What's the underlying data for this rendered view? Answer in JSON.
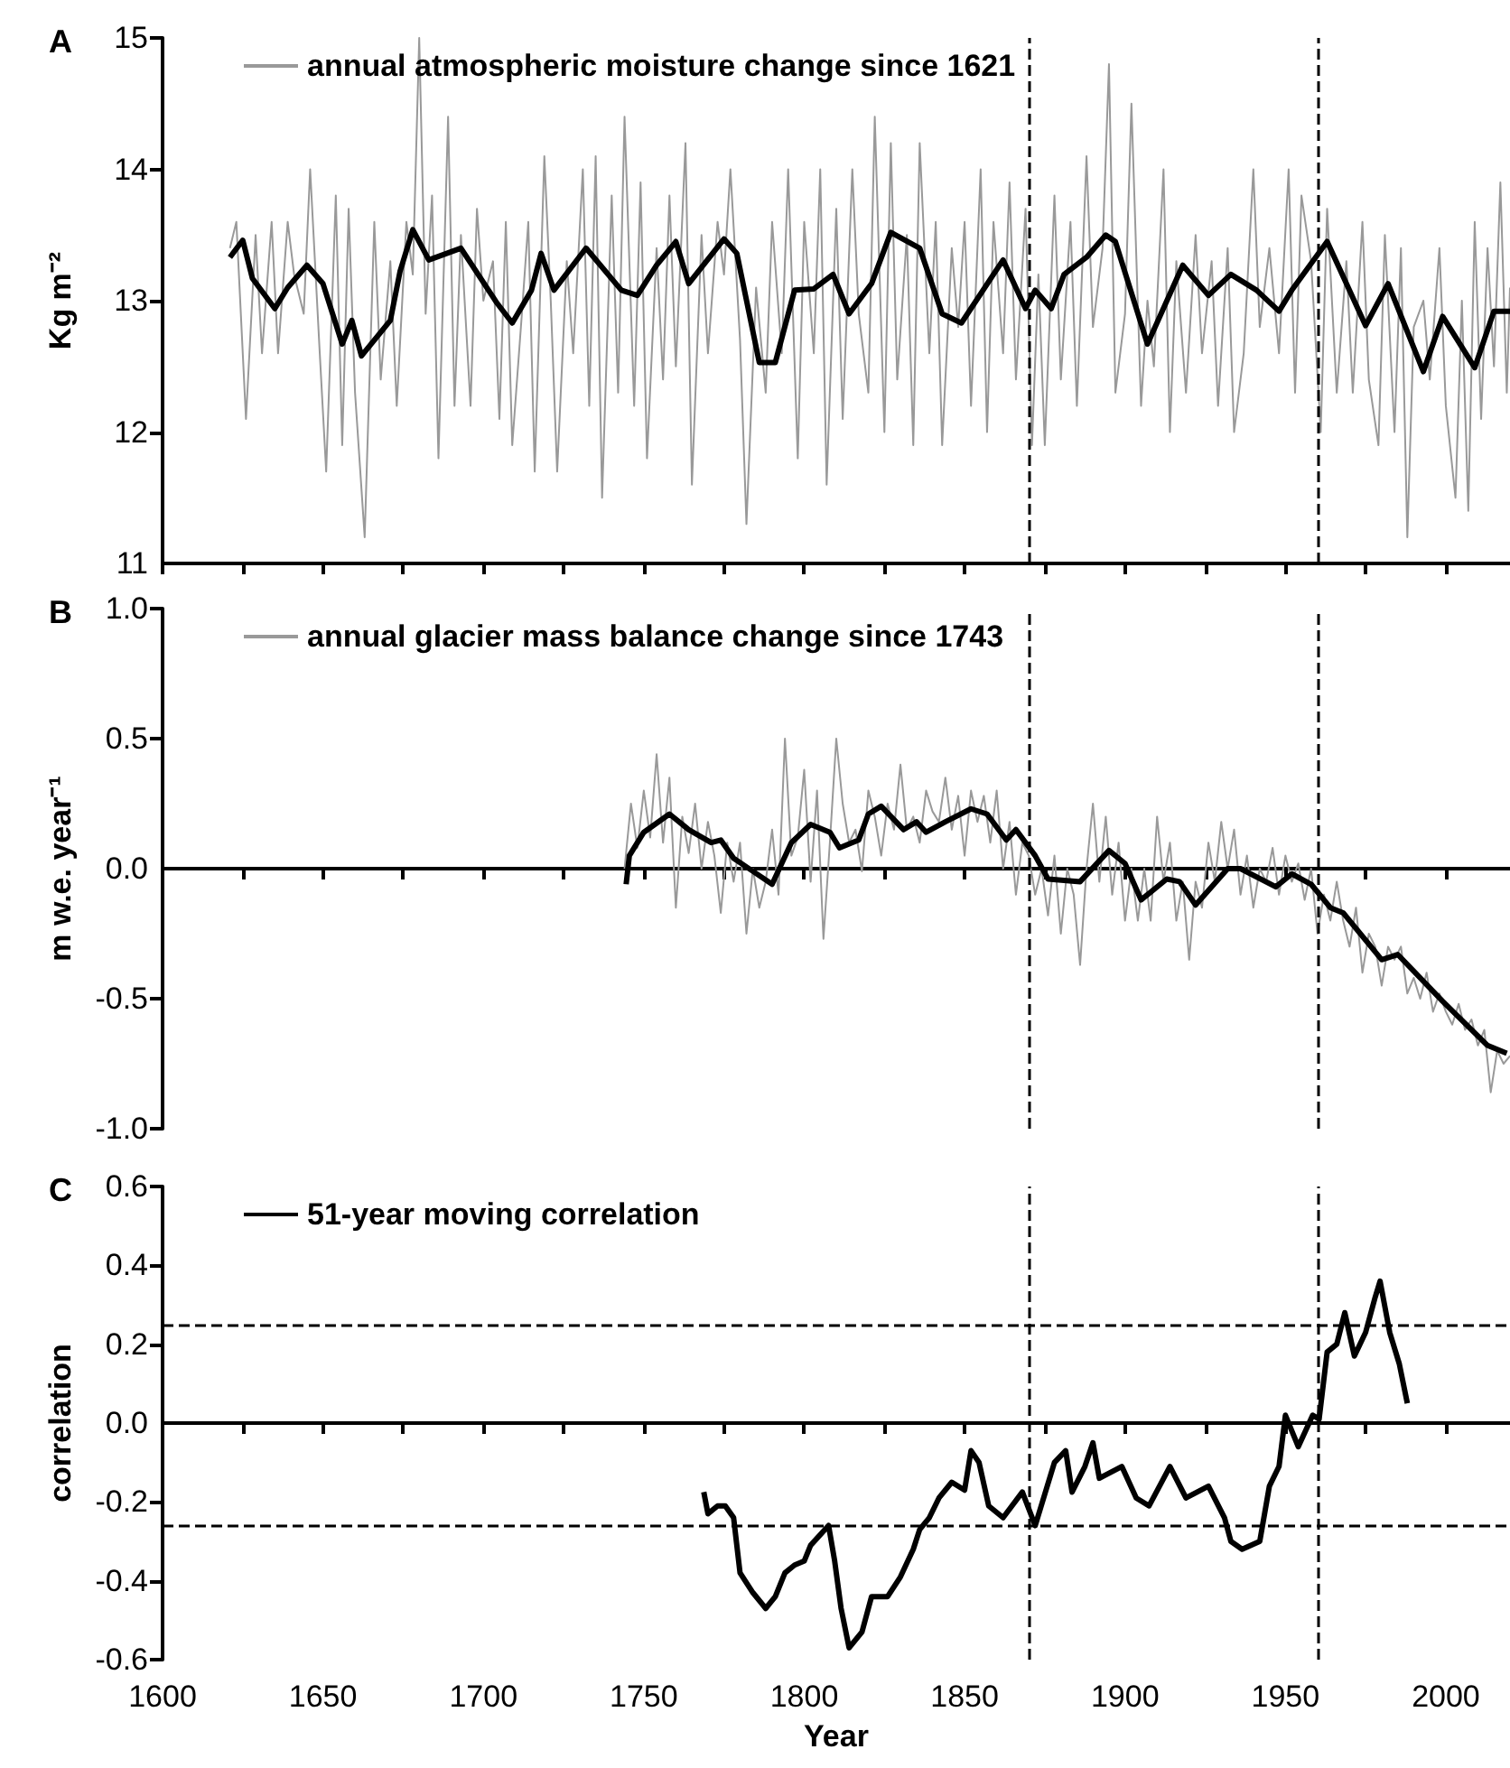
{
  "chart_data": [
    {
      "type": "line",
      "title": "A",
      "ylabel": "Kg m⁻²",
      "xlim": [
        1600,
        2020
      ],
      "ylim": [
        11,
        15
      ],
      "yticks": [
        11,
        12,
        13,
        14,
        15
      ],
      "tick_labels": "y",
      "legend": "top left",
      "marker": "none",
      "xticks": [
        1600,
        {
          "value": 1625,
          "label": null
        },
        1650,
        {
          "value": 1675,
          "label": null
        },
        1700,
        {
          "value": 1725,
          "label": null
        },
        1750,
        {
          "value": 1775,
          "label": null
        },
        1800,
        {
          "value": 1825,
          "label": null
        },
        1850,
        {
          "value": 1875,
          "label": null
        },
        1900,
        {
          "value": 1925,
          "label": null
        },
        1950,
        {
          "value": 1975,
          "label": null
        },
        2000
      ],
      "ref_lines": [
        {
          "axis": "x",
          "value": 1870,
          "color": "#000000",
          "line_style": "dashed"
        },
        {
          "axis": "x",
          "value": 1960,
          "color": "#000000",
          "line_style": "dashed"
        }
      ],
      "series": [
        {
          "name": "annual atmospheric moisture change since 1621",
          "color": "#999999",
          "x": [
            1621,
            1623,
            1626,
            1629,
            1631,
            1634,
            1636,
            1639,
            1641,
            1644,
            1646,
            1649,
            1651,
            1654,
            1656,
            1658,
            1660,
            1663,
            1666,
            1668,
            1671,
            1673,
            1676,
            1678,
            1680,
            1682,
            1684,
            1686,
            1689,
            1691,
            1693,
            1696,
            1698,
            1700,
            1703,
            1705,
            1707,
            1709,
            1712,
            1714,
            1716,
            1719,
            1721,
            1723,
            1726,
            1728,
            1731,
            1733,
            1735,
            1737,
            1740,
            1742,
            1744,
            1747,
            1749,
            1751,
            1754,
            1756,
            1758,
            1760,
            1763,
            1765,
            1768,
            1770,
            1773,
            1775,
            1777,
            1780,
            1782,
            1785,
            1788,
            1790,
            1793,
            1795,
            1798,
            1800,
            1803,
            1805,
            1807,
            1810,
            1812,
            1815,
            1817,
            1820,
            1822,
            1825,
            1827,
            1829,
            1832,
            1834,
            1836,
            1839,
            1841,
            1843,
            1846,
            1848,
            1850,
            1852,
            1855,
            1857,
            1859,
            1862,
            1864,
            1866,
            1869,
            1871,
            1873,
            1875,
            1878,
            1880,
            1883,
            1885,
            1888,
            1890,
            1893,
            1895,
            1897,
            1900,
            1902,
            1905,
            1907,
            1909,
            1912,
            1914,
            1916,
            1919,
            1922,
            1924,
            1927,
            1929,
            1932,
            1934,
            1937,
            1940,
            1942,
            1945,
            1948,
            1951,
            1953,
            1955,
            1958,
            1961,
            1963,
            1966,
            1969,
            1971,
            1974,
            1976,
            1979,
            1981,
            1984,
            1986,
            1988,
            1990,
            1993,
            1995,
            1998,
            2000,
            2003,
            2005,
            2007,
            2009,
            2011,
            2013,
            2015,
            2017,
            2019,
            2020
          ],
          "values": [
            13.4,
            13.6,
            12.1,
            13.5,
            12.6,
            13.6,
            12.6,
            13.6,
            13.2,
            12.9,
            14.0,
            12.6,
            11.7,
            13.8,
            11.9,
            13.7,
            12.3,
            11.2,
            13.6,
            12.4,
            13.3,
            12.2,
            13.6,
            13.2,
            15.0,
            12.9,
            13.8,
            11.8,
            14.4,
            12.2,
            13.5,
            12.2,
            13.7,
            13.0,
            13.3,
            12.1,
            13.6,
            11.9,
            12.9,
            13.6,
            11.7,
            14.1,
            13.0,
            11.7,
            13.3,
            12.6,
            14.0,
            12.2,
            14.1,
            11.5,
            13.8,
            12.3,
            14.4,
            12.2,
            13.9,
            11.8,
            13.4,
            12.4,
            13.8,
            12.5,
            14.2,
            11.6,
            13.5,
            12.6,
            13.6,
            13.2,
            14.0,
            12.7,
            11.3,
            13.1,
            12.3,
            13.6,
            12.6,
            14.0,
            11.8,
            13.6,
            12.6,
            14.0,
            11.6,
            13.7,
            12.1,
            14.0,
            12.9,
            12.3,
            14.4,
            12.0,
            14.2,
            12.4,
            13.5,
            11.9,
            14.2,
            12.6,
            13.6,
            11.9,
            13.4,
            12.8,
            13.6,
            12.2,
            14.0,
            12.0,
            13.6,
            12.6,
            13.9,
            12.4,
            13.7,
            11.9,
            13.2,
            11.9,
            13.8,
            12.4,
            13.6,
            12.2,
            14.1,
            12.8,
            13.4,
            14.8,
            12.3,
            12.9,
            14.5,
            12.2,
            13.0,
            12.5,
            14.0,
            12.0,
            13.3,
            12.3,
            13.5,
            12.6,
            13.3,
            12.2,
            13.4,
            12.0,
            12.6,
            14.0,
            12.8,
            13.4,
            12.6,
            14.0,
            12.3,
            13.8,
            13.3,
            12.0,
            13.7,
            12.3,
            13.3,
            12.3,
            13.6,
            12.4,
            11.9,
            13.5,
            12.0,
            13.4,
            11.2,
            12.8,
            13.0,
            12.4,
            13.4,
            12.2,
            11.5,
            13.0,
            11.4,
            13.6,
            12.1,
            13.4,
            12.5,
            13.9,
            12.3,
            13.1
          ]
        },
        {
          "color": "#000000",
          "x": [
            1621,
            1625,
            1628,
            1635,
            1639,
            1645,
            1650,
            1656,
            1659,
            1662,
            1671,
            1674,
            1678,
            1683,
            1693,
            1704,
            1709,
            1715,
            1718,
            1722,
            1732,
            1743,
            1748,
            1754,
            1760,
            1764,
            1775,
            1779,
            1786,
            1791,
            1797,
            1803,
            1809,
            1814,
            1821,
            1827,
            1836,
            1843,
            1849,
            1859,
            1862,
            1869,
            1872,
            1877,
            1881,
            1888,
            1894,
            1897,
            1907,
            1918,
            1926,
            1933,
            1941,
            1948,
            1952,
            1963,
            1969,
            1975,
            1982,
            1993,
            1999,
            2009,
            2015,
            2020
          ],
          "values": [
            13.33,
            13.46,
            13.17,
            12.94,
            13.1,
            13.27,
            13.13,
            12.67,
            12.85,
            12.58,
            12.85,
            13.22,
            13.54,
            13.31,
            13.4,
            12.99,
            12.83,
            13.08,
            13.36,
            13.08,
            13.4,
            13.08,
            13.04,
            13.27,
            13.45,
            13.13,
            13.47,
            13.36,
            12.53,
            12.53,
            13.08,
            13.09,
            13.2,
            12.9,
            13.13,
            13.52,
            13.4,
            12.9,
            12.83,
            13.2,
            13.31,
            12.94,
            13.08,
            12.94,
            13.2,
            13.33,
            13.5,
            13.45,
            12.67,
            13.27,
            13.04,
            13.2,
            13.08,
            12.92,
            13.08,
            13.45,
            13.13,
            12.81,
            13.13,
            12.46,
            12.88,
            12.49,
            12.92,
            12.92
          ]
        }
      ]
    },
    {
      "type": "line",
      "title": "B",
      "ylabel": "m w.e. year⁻¹",
      "xlim": [
        1600,
        2020
      ],
      "ylim": [
        -1.0,
        1.0
      ],
      "tick_labels": "y",
      "legend": "top left",
      "marker": "none",
      "yticks": [
        {
          "value": -1.0,
          "label": "-1.0"
        },
        {
          "value": -0.5,
          "label": "-0.5"
        },
        {
          "value": 0.0,
          "label": "0.0"
        },
        {
          "value": 0.5,
          "label": "0.5"
        },
        {
          "value": 1.0,
          "label": "1.0"
        }
      ],
      "xticks": [
        1600,
        {
          "value": 1625,
          "label": null
        },
        1650,
        {
          "value": 1675,
          "label": null
        },
        1700,
        {
          "value": 1725,
          "label": null
        },
        1750,
        {
          "value": 1775,
          "label": null
        },
        1800,
        {
          "value": 1825,
          "label": null
        },
        1850,
        {
          "value": 1875,
          "label": null
        },
        1900,
        {
          "value": 1925,
          "label": null
        },
        1950,
        {
          "value": 1975,
          "label": null
        },
        2000
      ],
      "ref_lines": [
        {
          "axis": "x",
          "value": 1870,
          "color": "#000000",
          "line_style": "dashed"
        },
        {
          "axis": "x",
          "value": 1960,
          "color": "#000000",
          "line_style": "dashed"
        }
      ],
      "series": [
        {
          "name": "annual glacier mass balance change since 1743",
          "color": "#999999",
          "x": [
            1744,
            1746,
            1748,
            1750,
            1752,
            1754,
            1756,
            1758,
            1760,
            1762,
            1764,
            1766,
            1768,
            1770,
            1772,
            1774,
            1776,
            1778,
            1780,
            1782,
            1784,
            1786,
            1788,
            1790,
            1792,
            1794,
            1796,
            1798,
            1800,
            1802,
            1804,
            1806,
            1808,
            1810,
            1812,
            1814,
            1816,
            1818,
            1820,
            1822,
            1824,
            1826,
            1828,
            1830,
            1832,
            1834,
            1836,
            1838,
            1840,
            1842,
            1844,
            1846,
            1848,
            1850,
            1852,
            1854,
            1856,
            1858,
            1860,
            1862,
            1864,
            1866,
            1868,
            1870,
            1872,
            1874,
            1876,
            1878,
            1880,
            1882,
            1884,
            1886,
            1888,
            1890,
            1892,
            1894,
            1896,
            1898,
            1900,
            1902,
            1904,
            1906,
            1908,
            1910,
            1912,
            1914,
            1916,
            1918,
            1920,
            1922,
            1924,
            1926,
            1928,
            1930,
            1932,
            1934,
            1936,
            1938,
            1940,
            1942,
            1944,
            1946,
            1948,
            1950,
            1952,
            1954,
            1956,
            1958,
            1960,
            1962,
            1964,
            1966,
            1968,
            1970,
            1972,
            1974,
            1976,
            1978,
            1980,
            1982,
            1984,
            1986,
            1988,
            1990,
            1992,
            1994,
            1996,
            1998,
            2000,
            2002,
            2004,
            2006,
            2008,
            2010,
            2012,
            2014,
            2016,
            2018,
            2020
          ],
          "values": [
            0.0,
            0.25,
            0.08,
            0.3,
            0.12,
            0.44,
            0.1,
            0.35,
            -0.15,
            0.2,
            0.06,
            0.25,
            0.0,
            0.18,
            0.05,
            -0.17,
            0.1,
            -0.05,
            0.1,
            -0.25,
            0.0,
            -0.15,
            -0.05,
            0.15,
            -0.1,
            0.5,
            0.05,
            0.12,
            0.38,
            -0.05,
            0.3,
            -0.27,
            0.1,
            0.5,
            0.25,
            0.1,
            0.15,
            -0.01,
            0.3,
            0.2,
            0.05,
            0.25,
            0.15,
            0.4,
            0.15,
            0.2,
            0.1,
            0.3,
            0.22,
            0.18,
            0.35,
            0.15,
            0.28,
            0.05,
            0.3,
            0.18,
            0.28,
            0.1,
            0.3,
            0.0,
            0.18,
            -0.1,
            0.1,
            0.05,
            -0.1,
            0.0,
            -0.18,
            0.05,
            -0.25,
            0.0,
            -0.1,
            -0.37,
            0.0,
            0.25,
            -0.05,
            0.2,
            -0.1,
            0.1,
            -0.2,
            0.0,
            -0.2,
            0.0,
            -0.2,
            0.2,
            -0.05,
            0.1,
            -0.2,
            -0.05,
            -0.35,
            -0.05,
            -0.15,
            0.1,
            -0.05,
            0.18,
            0.0,
            0.15,
            -0.1,
            0.05,
            -0.15,
            0.0,
            -0.05,
            0.08,
            -0.1,
            0.05,
            -0.05,
            0.02,
            -0.12,
            0.0,
            -0.25,
            -0.1,
            -0.2,
            -0.05,
            -0.2,
            -0.3,
            -0.15,
            -0.4,
            -0.25,
            -0.3,
            -0.45,
            -0.3,
            -0.35,
            -0.3,
            -0.48,
            -0.42,
            -0.5,
            -0.4,
            -0.55,
            -0.48,
            -0.55,
            -0.6,
            -0.52,
            -0.62,
            -0.58,
            -0.68,
            -0.62,
            -0.86,
            -0.7,
            -0.75,
            -0.72
          ]
        },
        {
          "color": "#000000",
          "x": [
            1744.5,
            1745.5,
            1750,
            1758,
            1764,
            1771,
            1774,
            1778,
            1784,
            1790,
            1796,
            1802,
            1808,
            1811,
            1817,
            1820,
            1824,
            1831,
            1835,
            1838,
            1844,
            1852,
            1857,
            1863,
            1866,
            1872,
            1876,
            1886,
            1895,
            1900,
            1905,
            1913,
            1917,
            1922,
            1932,
            1936,
            1947,
            1952,
            1958,
            1964,
            1968,
            1980,
            1985,
            1999,
            2013,
            2019
          ],
          "values": [
            -0.06,
            0.05,
            0.14,
            0.21,
            0.15,
            0.1,
            0.11,
            0.04,
            -0.01,
            -0.06,
            0.1,
            0.17,
            0.14,
            0.08,
            0.11,
            0.21,
            0.24,
            0.15,
            0.18,
            0.14,
            0.18,
            0.23,
            0.21,
            0.11,
            0.15,
            0.05,
            -0.04,
            -0.05,
            0.07,
            0.02,
            -0.12,
            -0.04,
            -0.05,
            -0.14,
            0.0,
            0.0,
            -0.07,
            -0.02,
            -0.06,
            -0.15,
            -0.17,
            -0.35,
            -0.33,
            -0.51,
            -0.68,
            -0.71
          ]
        }
      ]
    },
    {
      "type": "line",
      "title": "C",
      "xlabel": "Year",
      "ylabel": "correlation",
      "xlim": [
        1600,
        2020
      ],
      "ylim": [
        -0.6,
        0.6
      ],
      "legend": "top left",
      "marker": "none",
      "yticks": [
        {
          "value": -0.6,
          "label": "-0.6"
        },
        {
          "value": -0.4,
          "label": "-0.4"
        },
        {
          "value": -0.2,
          "label": "-0.2"
        },
        {
          "value": 0.0,
          "label": "0.0"
        },
        {
          "value": 0.2,
          "label": "0.2"
        },
        {
          "value": 0.4,
          "label": "0.4"
        },
        {
          "value": 0.6,
          "label": "0.6"
        }
      ],
      "xticks": [
        1600,
        {
          "value": 1625,
          "label": null
        },
        1650,
        {
          "value": 1675,
          "label": null
        },
        1700,
        {
          "value": 1725,
          "label": null
        },
        1750,
        {
          "value": 1775,
          "label": null
        },
        1800,
        {
          "value": 1825,
          "label": null
        },
        1850,
        {
          "value": 1875,
          "label": null
        },
        1900,
        {
          "value": 1925,
          "label": null
        },
        1950,
        {
          "value": 1975,
          "label": null
        },
        2000
      ],
      "ref_lines": [
        {
          "axis": "x",
          "value": 1870,
          "color": "#000000",
          "line_style": "dashed"
        },
        {
          "axis": "x",
          "value": 1960,
          "color": "#000000",
          "line_style": "dashed"
        },
        {
          "axis": "y",
          "value": 0.25,
          "color": "#000000",
          "line_style": "dashed"
        },
        {
          "axis": "y",
          "value": -0.26,
          "color": "#000000",
          "line_style": "dashed"
        }
      ],
      "series": [
        {
          "name": "51-year moving correlation",
          "color": "#000000",
          "x": [
            1768.7,
            1770,
            1773,
            1775.4,
            1778,
            1780,
            1784,
            1788,
            1791,
            1794,
            1797,
            1800,
            1802,
            1807.6,
            1809.5,
            1811.5,
            1814,
            1818,
            1821,
            1826,
            1830,
            1834,
            1836,
            1839,
            1842,
            1846,
            1850,
            1852,
            1854.5,
            1857.5,
            1862,
            1868,
            1872,
            1878,
            1881.5,
            1883.5,
            1887.5,
            1890,
            1892,
            1899,
            1903.5,
            1907.5,
            1914,
            1919,
            1926,
            1931,
            1933,
            1936.5,
            1942,
            1945,
            1948,
            1950,
            1954,
            1958.5,
            1960.5,
            1963,
            1966,
            1968.5,
            1971.5,
            1975,
            1978,
            1979.5,
            1982.5,
            1985.5,
            1988
          ],
          "values": [
            -0.175,
            -0.23,
            -0.21,
            -0.21,
            -0.24,
            -0.38,
            -0.43,
            -0.47,
            -0.44,
            -0.38,
            -0.36,
            -0.35,
            -0.31,
            -0.26,
            -0.35,
            -0.47,
            -0.57,
            -0.53,
            -0.44,
            -0.44,
            -0.39,
            -0.32,
            -0.27,
            -0.24,
            -0.19,
            -0.15,
            -0.17,
            -0.07,
            -0.1,
            -0.21,
            -0.24,
            -0.175,
            -0.26,
            -0.1,
            -0.07,
            -0.175,
            -0.11,
            -0.05,
            -0.14,
            -0.11,
            -0.19,
            -0.21,
            -0.11,
            -0.19,
            -0.16,
            -0.24,
            -0.3,
            -0.32,
            -0.3,
            -0.16,
            -0.11,
            0.02,
            -0.06,
            0.02,
            0.01,
            0.18,
            0.2,
            0.28,
            0.17,
            0.23,
            0.32,
            0.36,
            0.23,
            0.15,
            0.05
          ]
        }
      ]
    }
  ]
}
